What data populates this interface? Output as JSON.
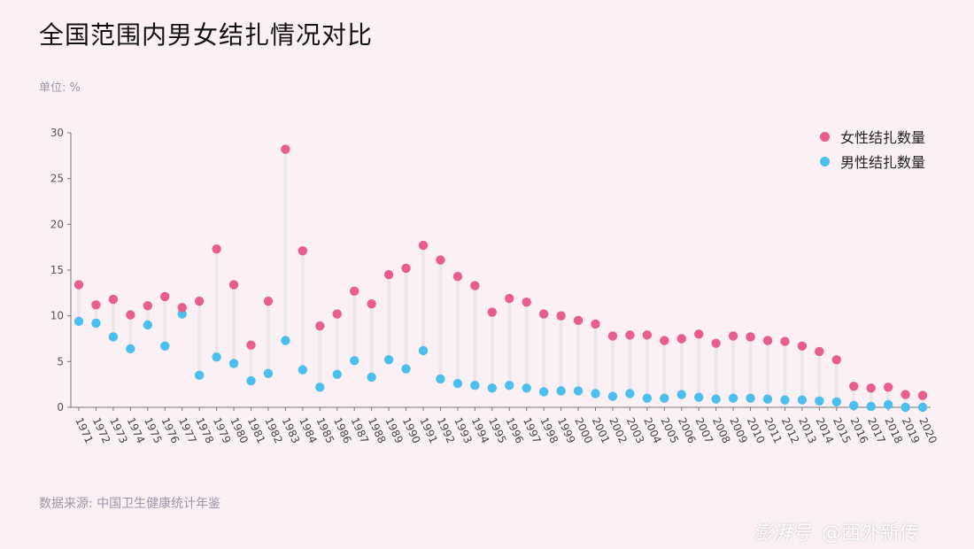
{
  "title": "全国范围内男女结扎情况对比",
  "unit_label": "单位: %",
  "source": "数据来源: 中国卫生健康统计年鉴",
  "watermark": {
    "brand": "澎湃号",
    "handle": "@西外新传"
  },
  "colors": {
    "female": "#e85d8c",
    "male": "#4bbfee",
    "stem": "#ebe7ec",
    "axis": "#777777",
    "background": "#fbf1f4"
  },
  "chart_data": {
    "type": "scatter",
    "title": "全国范围内男女结扎情况对比",
    "ylabel": "单位: %",
    "ylim": [
      0,
      30
    ],
    "yticks": [
      0,
      5,
      10,
      15,
      20,
      25,
      30
    ],
    "grid": false,
    "legend_position": "top-right",
    "categories": [
      "1971",
      "1972",
      "1973",
      "1974",
      "1975",
      "1976",
      "1977",
      "1978",
      "1979",
      "1980",
      "1981",
      "1982",
      "1983",
      "1984",
      "1985",
      "1986",
      "1987",
      "1988",
      "1989",
      "1990",
      "1991",
      "1992",
      "1993",
      "1994",
      "1995",
      "1996",
      "1997",
      "1998",
      "1999",
      "2000",
      "2001",
      "2002",
      "2003",
      "2004",
      "2005",
      "2006",
      "2007",
      "2008",
      "2009",
      "2010",
      "2011",
      "2012",
      "2013",
      "2014",
      "2015",
      "2016",
      "2017",
      "2018",
      "2019",
      "2020"
    ],
    "series": [
      {
        "name": "女性结扎数量",
        "color": "#e85d8c",
        "values": [
          13.4,
          11.2,
          11.8,
          10.1,
          11.1,
          12.1,
          10.9,
          11.6,
          17.3,
          13.4,
          6.8,
          11.6,
          28.2,
          17.1,
          8.9,
          10.2,
          12.7,
          11.3,
          14.5,
          15.2,
          17.7,
          16.1,
          14.3,
          13.3,
          10.4,
          11.9,
          11.5,
          10.2,
          10.0,
          9.5,
          9.1,
          7.8,
          7.9,
          7.9,
          7.3,
          7.5,
          8.0,
          7.0,
          7.8,
          7.7,
          7.3,
          7.2,
          6.7,
          6.1,
          5.2,
          2.3,
          2.1,
          2.2,
          1.4,
          1.3
        ]
      },
      {
        "name": "男性结扎数量",
        "color": "#4bbfee",
        "values": [
          9.4,
          9.2,
          7.7,
          6.4,
          9.0,
          6.7,
          10.2,
          3.5,
          5.5,
          4.8,
          2.9,
          3.7,
          7.3,
          4.1,
          2.2,
          3.6,
          5.1,
          3.3,
          5.2,
          4.2,
          6.2,
          3.1,
          2.6,
          2.4,
          2.1,
          2.4,
          2.1,
          1.7,
          1.8,
          1.8,
          1.5,
          1.2,
          1.5,
          1.0,
          1.0,
          1.4,
          1.1,
          0.9,
          1.0,
          1.0,
          0.9,
          0.8,
          0.8,
          0.7,
          0.6,
          0.2,
          0.1,
          0.3,
          0.0,
          0.0
        ]
      }
    ]
  }
}
